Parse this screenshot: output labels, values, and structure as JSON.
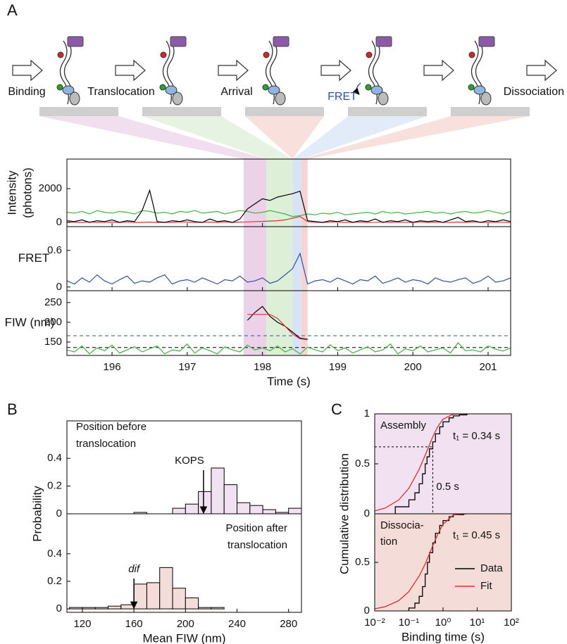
{
  "panels": [
    "A",
    "B",
    "C"
  ],
  "schematic": {
    "steps": [
      "Binding",
      "Translocation",
      "Arrival",
      "FRET",
      "Dissociation"
    ]
  },
  "chart_data": [
    {
      "type": "line",
      "ylabel": [
        "Intensity",
        "(photons)"
      ],
      "x": [
        195.4,
        195.5,
        195.6,
        195.7,
        195.8,
        195.9,
        196.0,
        196.1,
        196.2,
        196.3,
        196.4,
        196.5,
        196.6,
        196.7,
        196.8,
        196.9,
        197.0,
        197.1,
        197.2,
        197.3,
        197.4,
        197.5,
        197.6,
        197.7,
        197.8,
        197.9,
        198.0,
        198.1,
        198.2,
        198.3,
        198.4,
        198.5,
        198.6,
        198.7,
        198.8,
        198.9,
        199.0,
        199.1,
        199.2,
        199.3,
        199.4,
        199.5,
        199.6,
        199.7,
        199.8,
        199.9,
        200.0,
        200.1,
        200.2,
        200.3,
        200.4,
        200.5,
        200.6,
        200.7,
        200.8,
        200.9,
        201.0,
        201.1,
        201.2,
        201.3
      ],
      "xlim": [
        195.4,
        201.3
      ],
      "ylim": [
        -250,
        3750
      ],
      "yticks": [
        0,
        2000
      ],
      "spans": [
        {
          "start": 197.75,
          "end": 198.05,
          "color": "#e6c3e2"
        },
        {
          "start": 198.05,
          "end": 198.4,
          "color": "#d3eacb"
        },
        {
          "start": 198.4,
          "end": 198.52,
          "color": "#cbdaf2"
        },
        {
          "start": 198.52,
          "end": 198.6,
          "color": "#f2c6c1"
        }
      ],
      "series": [
        {
          "color": "#3cb43c",
          "values": [
            600,
            550,
            650,
            500,
            700,
            600,
            550,
            650,
            600,
            500,
            700,
            650,
            550,
            600,
            500,
            650,
            600,
            700,
            550,
            600,
            650,
            500,
            600,
            700,
            650,
            550,
            600,
            700,
            600,
            500,
            350,
            400,
            500,
            450,
            550,
            500,
            600,
            450,
            500,
            550,
            600,
            500,
            650,
            550,
            600,
            500,
            550,
            600,
            650,
            550,
            600,
            500,
            600,
            650,
            550,
            600,
            700,
            600,
            500,
            650
          ]
        },
        {
          "color": "#e03030",
          "values": [
            0,
            20,
            0,
            30,
            0,
            10,
            20,
            0,
            30,
            0,
            0,
            20,
            0,
            10,
            0,
            30,
            20,
            0,
            10,
            20,
            0,
            30,
            0,
            20,
            30,
            50,
            60,
            80,
            100,
            150,
            250,
            350,
            50,
            10,
            0,
            20,
            30,
            0,
            10,
            20,
            0,
            10,
            30,
            0,
            20,
            10,
            0,
            30,
            0,
            20,
            10,
            0,
            20,
            0,
            30,
            10,
            0,
            20,
            10,
            0
          ]
        },
        {
          "color": "#000000",
          "values": [
            100,
            50,
            150,
            0,
            100,
            50,
            150,
            0,
            100,
            50,
            700,
            1900,
            50,
            0,
            100,
            50,
            150,
            50,
            0,
            200,
            50,
            100,
            0,
            200,
            800,
            1100,
            1400,
            1300,
            1500,
            1600,
            1700,
            1850,
            100,
            50,
            0,
            100,
            50,
            150,
            0,
            100,
            50,
            200,
            0,
            100,
            50,
            150,
            0,
            100,
            50,
            100,
            0,
            150,
            300,
            50,
            100,
            0,
            100,
            50,
            150,
            50
          ]
        }
      ]
    },
    {
      "type": "line",
      "ylabel": "FRET",
      "x": [
        195.4,
        195.5,
        195.6,
        195.7,
        195.8,
        195.9,
        196.0,
        196.1,
        196.2,
        196.3,
        196.4,
        196.5,
        196.6,
        196.7,
        196.8,
        196.9,
        197.0,
        197.1,
        197.2,
        197.3,
        197.4,
        197.5,
        197.6,
        197.7,
        197.8,
        197.9,
        198.0,
        198.1,
        198.2,
        198.3,
        198.4,
        198.5,
        198.6,
        198.7,
        198.8,
        198.9,
        199.0,
        199.1,
        199.2,
        199.3,
        199.4,
        199.5,
        199.6,
        199.7,
        199.8,
        199.9,
        200.0,
        200.1,
        200.2,
        200.3,
        200.4,
        200.5,
        200.6,
        200.7,
        200.8,
        200.9,
        201.0,
        201.1,
        201.2,
        201.3
      ],
      "xlim": [
        195.4,
        201.3
      ],
      "ylim": [
        -0.06,
        0.99
      ],
      "yticks": [
        0,
        0.6
      ],
      "series": [
        {
          "color": "#3050a0",
          "values": [
            0.1,
            0.05,
            0.15,
            0.08,
            0.2,
            0.1,
            0.05,
            0.12,
            0.18,
            0.06,
            0.1,
            0.08,
            0.15,
            0.2,
            0.05,
            0.1,
            0.12,
            0.08,
            0.15,
            0.1,
            0.05,
            0.12,
            0.1,
            0.18,
            0.08,
            0.1,
            0.15,
            0.06,
            0.1,
            0.2,
            0.3,
            0.55,
            0.05,
            0.1,
            0.12,
            0.08,
            0.15,
            0.1,
            0.05,
            0.12,
            0.1,
            0.18,
            0.06,
            0.1,
            0.15,
            0.08,
            0.12,
            0.1,
            0.05,
            0.15,
            0.1,
            0.08,
            0.12,
            0.15,
            0.06,
            0.1,
            0.18,
            0.08,
            0.1,
            0.15
          ]
        }
      ]
    },
    {
      "type": "line",
      "ylabel": "FIW (nm)",
      "xlabel": "Time (s)",
      "x": [
        195.4,
        195.5,
        195.6,
        195.7,
        195.8,
        195.9,
        196.0,
        196.1,
        196.2,
        196.3,
        196.4,
        196.5,
        196.6,
        196.7,
        196.8,
        196.9,
        197.0,
        197.1,
        197.2,
        197.3,
        197.4,
        197.5,
        197.6,
        197.7,
        197.8,
        197.9,
        198.0,
        198.1,
        198.2,
        198.3,
        198.4,
        198.5,
        198.6,
        198.7,
        198.8,
        198.9,
        199.0,
        199.1,
        199.2,
        199.3,
        199.4,
        199.5,
        199.6,
        199.7,
        199.8,
        199.9,
        200.0,
        200.1,
        200.2,
        200.3,
        200.4,
        200.5,
        200.6,
        200.7,
        200.8,
        200.9,
        201.0,
        201.1,
        201.2,
        201.3
      ],
      "xlim": [
        195.4,
        201.3
      ],
      "xticks": [
        196,
        197,
        198,
        199,
        200,
        201
      ],
      "ylim": [
        116,
        280
      ],
      "yticks": [
        150,
        200,
        250
      ],
      "hlines": [
        {
          "value": 166,
          "color": "#3050a0"
        },
        {
          "value": 136,
          "color": "#000000"
        }
      ],
      "series": [
        {
          "color": "#3cb43c",
          "values": [
            130,
            125,
            140,
            120,
            135,
            128,
            142,
            122,
            130,
            138,
            125,
            133,
            140,
            120,
            130,
            127,
            145,
            122,
            135,
            128,
            120,
            138,
            130,
            125,
            142,
            130,
            135,
            128,
            140,
            125,
            133,
            120,
            137,
            130,
            125,
            143,
            128,
            135,
            122,
            130,
            138,
            125,
            130,
            145,
            120,
            133,
            128,
            140,
            125,
            130,
            135,
            122,
            148,
            128,
            130,
            125,
            140,
            132,
            127,
            135
          ]
        },
        {
          "color": "#000000",
          "values": [
            null,
            null,
            null,
            null,
            null,
            null,
            null,
            null,
            null,
            null,
            null,
            null,
            null,
            null,
            null,
            null,
            null,
            null,
            null,
            null,
            null,
            null,
            null,
            null,
            205,
            225,
            240,
            215,
            200,
            190,
            175,
            160,
            157,
            null,
            null,
            null,
            null,
            null,
            null,
            null,
            null,
            null,
            null,
            null,
            null,
            null,
            null,
            null,
            null,
            null,
            null,
            null,
            null,
            null,
            null,
            null,
            null,
            null,
            null,
            null
          ]
        },
        {
          "color": "#e03030",
          "values": [
            null,
            null,
            null,
            null,
            null,
            null,
            null,
            null,
            null,
            null,
            null,
            null,
            null,
            null,
            null,
            null,
            null,
            null,
            null,
            null,
            null,
            null,
            null,
            null,
            220,
            220,
            220,
            220,
            210,
            190,
            170,
            158,
            156,
            null,
            null,
            null,
            null,
            null,
            null,
            null,
            null,
            null,
            null,
            null,
            null,
            null,
            null,
            null,
            null,
            null,
            null,
            null,
            null,
            null,
            null,
            null,
            null,
            null,
            null,
            null
          ]
        }
      ]
    },
    {
      "type": "histogram",
      "ylabel": "Probability",
      "color": "#f2e1f0",
      "bins": [
        110,
        120,
        130,
        140,
        150,
        160,
        170,
        180,
        190,
        200,
        210,
        220,
        230,
        240,
        250,
        260,
        270,
        280,
        290
      ],
      "values": [
        0,
        0,
        0,
        0,
        0,
        0.01,
        0,
        0,
        0.04,
        0.07,
        0.16,
        0.33,
        0.21,
        0.08,
        0.06,
        0.03,
        0.01,
        0.04
      ],
      "xlim": [
        108,
        290
      ],
      "ylim": [
        0,
        0.67
      ],
      "yticks": [
        0,
        0.2,
        0.4
      ],
      "annotations": [
        "Position before",
        "translocation"
      ],
      "marker": {
        "label": "KOPS",
        "value": 214
      }
    },
    {
      "type": "histogram",
      "xlabel": "Mean FIW (nm)",
      "color": "#f4dcd8",
      "bins": [
        110,
        120,
        130,
        140,
        150,
        160,
        170,
        180,
        190,
        200,
        210,
        220,
        230,
        240,
        250,
        260,
        270,
        280,
        290
      ],
      "values": [
        0.01,
        0.01,
        0.01,
        0.02,
        0.03,
        0.18,
        0.19,
        0.3,
        0.15,
        0.08,
        0.01,
        0.01,
        0,
        0,
        0,
        0,
        0,
        0
      ],
      "xlim": [
        108,
        290
      ],
      "xticks": [
        120,
        160,
        200,
        240,
        280
      ],
      "ylim": [
        -0.025,
        0.69
      ],
      "yticks": [
        0,
        0.2,
        0.4
      ],
      "annotations": [
        "Position after",
        "translocation"
      ],
      "marker": {
        "label": "dif",
        "value": 160
      }
    },
    {
      "type": "step",
      "ylabel": "Cumulative distribution",
      "background": "#f2e1f0",
      "xlog": true,
      "xlim": [
        0.01,
        100
      ],
      "ylim": [
        0,
        1
      ],
      "yticks": [
        0,
        0.5,
        1
      ],
      "annotations": [
        "Assembly",
        "t₁ = 0.34 s"
      ],
      "guide": {
        "x": 0.5,
        "y": 0.67,
        "label": "0.5 s"
      },
      "series": [
        {
          "color": "#000000",
          "step": true,
          "x": [
            0.04,
            0.1,
            0.15,
            0.2,
            0.25,
            0.3,
            0.34,
            0.4,
            0.5,
            0.6,
            0.8,
            1,
            1.5,
            2,
            3,
            5
          ],
          "values": [
            0.07,
            0.14,
            0.21,
            0.3,
            0.4,
            0.5,
            0.57,
            0.65,
            0.72,
            0.8,
            0.87,
            0.92,
            0.96,
            0.98,
            0.99,
            1
          ]
        },
        {
          "color": "#e03030",
          "x": [
            0.01,
            0.02,
            0.05,
            0.1,
            0.2,
            0.3,
            0.5,
            0.7,
            1,
            2,
            5
          ],
          "values": [
            0.029,
            0.057,
            0.137,
            0.255,
            0.445,
            0.586,
            0.77,
            0.872,
            0.947,
            0.997,
            1
          ]
        }
      ]
    },
    {
      "type": "step",
      "xlabel": "Binding time (s)",
      "background": "#f4dcd8",
      "xlog": true,
      "legend": "right",
      "xlim": [
        0.01,
        100
      ],
      "xticks": [
        {
          "value": 0.01,
          "label": "10⁻²"
        },
        {
          "value": 0.1,
          "label": "10⁻¹"
        },
        {
          "value": 1,
          "label": "10⁰"
        },
        {
          "value": 10,
          "label": "10¹"
        },
        {
          "value": 100,
          "label": "10²"
        }
      ],
      "ylim": [
        0,
        1
      ],
      "yticks": [
        0,
        0.5
      ],
      "annotations": [
        "Dissocia-",
        "tion",
        "t₁ = 0.45 s"
      ],
      "series": [
        {
          "name": "Data",
          "color": "#000000",
          "step": true,
          "x": [
            0.1,
            0.15,
            0.2,
            0.25,
            0.3,
            0.35,
            0.4,
            0.5,
            0.6,
            0.8,
            1,
            1.5,
            2,
            4
          ],
          "values": [
            0.03,
            0.08,
            0.15,
            0.25,
            0.38,
            0.5,
            0.6,
            0.7,
            0.8,
            0.88,
            0.93,
            0.97,
            0.99,
            1
          ]
        },
        {
          "name": "Fit",
          "color": "#e03030",
          "x": [
            0.01,
            0.02,
            0.05,
            0.1,
            0.2,
            0.3,
            0.5,
            0.7,
            1,
            2,
            5
          ],
          "values": [
            0.022,
            0.043,
            0.105,
            0.199,
            0.359,
            0.483,
            0.671,
            0.789,
            0.892,
            0.988,
            1
          ]
        }
      ]
    }
  ]
}
